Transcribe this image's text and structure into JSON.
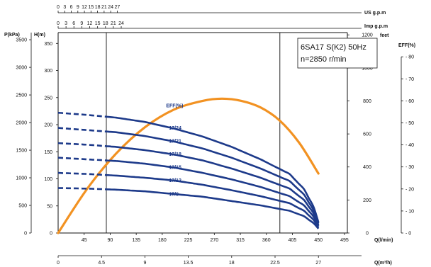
{
  "chart_data": {
    "type": "line",
    "title_line1": "6SA17 S(K2) 50Hz",
    "title_line2": "n=2850 r/min",
    "x_axes": {
      "us_gpm": {
        "unit": "US  g.p.m",
        "ticks": [
          "0",
          "3",
          "6",
          "9",
          "12",
          "15",
          "18",
          "21",
          "24",
          "27"
        ]
      },
      "imp_gpm": {
        "unit": "Imp  g.p.m",
        "ticks": [
          "0",
          "3",
          "6",
          "9",
          "12",
          "15",
          "18",
          "21",
          "24"
        ]
      },
      "q_lmin": {
        "unit": "Q(l/min)",
        "ticks": [
          "45",
          "90",
          "135",
          "180",
          "225",
          "270",
          "315",
          "360",
          "405",
          "450",
          "495"
        ]
      },
      "q_m3h": {
        "unit": "Q(m³/h)",
        "ticks": [
          "0",
          "4.5",
          "9",
          "13.5",
          "18",
          "22.5",
          "27"
        ]
      }
    },
    "y_axes": {
      "pressure": {
        "unit": "P(kPa)",
        "ticks": [
          "0",
          "500",
          "1000",
          "1500",
          "2000",
          "2500",
          "3000",
          "3500"
        ]
      },
      "head_m": {
        "unit": "H(m)",
        "ticks": [
          "0",
          "50",
          "100",
          "150",
          "200",
          "250",
          "300",
          "350"
        ]
      },
      "feet": {
        "unit": "feet",
        "ticks": [
          "0",
          "200",
          "400",
          "600",
          "800",
          "1000",
          "1200"
        ]
      },
      "efficiency": {
        "unit": "EFF(%)",
        "ticks": [
          "0",
          "10",
          "20",
          "30",
          "40",
          "50",
          "60",
          "70",
          "80"
        ]
      }
    },
    "x_range_m3h": [
      0,
      30
    ],
    "y_range_m": [
      0,
      370
    ],
    "eff_range_pct": [
      0,
      91
    ],
    "vertical_markers_m3h": [
      5,
      23
    ],
    "series": [
      {
        "name": "17/24",
        "head_m": [
          222,
          218,
          213,
          205,
          193,
          178,
          159,
          136,
          109,
          81,
          48,
          20
        ],
        "x_m3h": [
          0,
          3,
          6,
          9,
          12,
          15,
          18,
          21,
          24,
          25.5,
          26.5,
          27
        ]
      },
      {
        "name": "17/21",
        "head_m": [
          194,
          190,
          186,
          179,
          169,
          156,
          139,
          119,
          96,
          71,
          42,
          18
        ],
        "x_m3h": [
          0,
          3,
          6,
          9,
          12,
          15,
          18,
          21,
          24,
          25.5,
          26.5,
          27
        ]
      },
      {
        "name": "17/18",
        "head_m": [
          166,
          163,
          159,
          153,
          145,
          134,
          119,
          102,
          82,
          61,
          36,
          15
        ],
        "x_m3h": [
          0,
          3,
          6,
          9,
          12,
          15,
          18,
          21,
          24,
          25.5,
          26.5,
          27
        ]
      },
      {
        "name": "17/15",
        "head_m": [
          139,
          136,
          133,
          128,
          121,
          111,
          99,
          85,
          68,
          51,
          30,
          13
        ],
        "x_m3h": [
          0,
          3,
          6,
          9,
          12,
          15,
          18,
          21,
          24,
          25.5,
          26.5,
          27
        ]
      },
      {
        "name": "17/12",
        "head_m": [
          111,
          109,
          106,
          102,
          97,
          89,
          79,
          68,
          55,
          41,
          24,
          10
        ],
        "x_m3h": [
          0,
          3,
          6,
          9,
          12,
          15,
          18,
          21,
          24,
          25.5,
          26.5,
          27
        ]
      },
      {
        "name": "17/9",
        "head_m": [
          83,
          82,
          80,
          77,
          72,
          67,
          59,
          51,
          41,
          31,
          18,
          8
        ],
        "x_m3h": [
          0,
          3,
          6,
          9,
          12,
          15,
          18,
          21,
          24,
          25.5,
          26.5,
          27
        ]
      }
    ],
    "efficiency_curve": {
      "name": "EFF(%)",
      "x_m3h": [
        0,
        3,
        6,
        9,
        12,
        15,
        17,
        19,
        21,
        23,
        25,
        27
      ],
      "eff_pct": [
        0,
        20,
        36,
        48,
        56,
        60,
        61,
        60,
        57,
        51,
        41,
        27
      ]
    },
    "dashed_until_m3h": 5
  }
}
